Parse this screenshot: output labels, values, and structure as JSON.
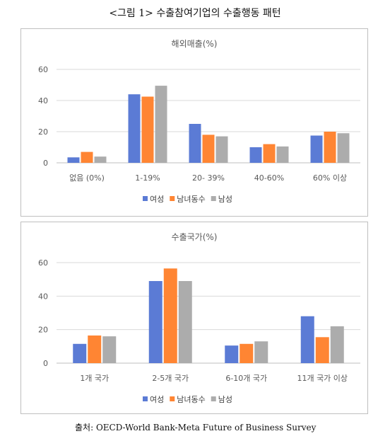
{
  "figure_title": "<그림 1> 수출참여기업의 수출행동 패턴",
  "source": "출처: OECD-World Bank-Meta Future of Business Survey",
  "colors": {
    "female": "#5b7bd5",
    "both": "#ff8533",
    "male": "#acacac",
    "grid": "#d9d9d9",
    "axis": "#bfbfbf"
  },
  "chart_data": [
    {
      "type": "bar",
      "title": "해외매출(%)",
      "categories": [
        "없음 (0%)",
        "1-19%",
        "20- 39%",
        "40-60%",
        "60% 이상"
      ],
      "series": [
        {
          "name": "여성",
          "values": [
            3.5,
            44,
            25,
            10,
            17.5
          ]
        },
        {
          "name": "남녀동수",
          "values": [
            7,
            42.5,
            18,
            12,
            20
          ]
        },
        {
          "name": "남성",
          "values": [
            4,
            49.5,
            17,
            10.5,
            19
          ]
        }
      ],
      "ylim": [
        0,
        60
      ],
      "yticks": [
        0,
        20,
        40,
        60
      ],
      "grid": true,
      "legend": "bottom"
    },
    {
      "type": "bar",
      "title": "수출국가(%)",
      "categories": [
        "1개 국가",
        "2-5개 국가",
        "6-10개 국가",
        "11개 국가 이상"
      ],
      "series": [
        {
          "name": "여성",
          "values": [
            11.5,
            49,
            10.5,
            28
          ]
        },
        {
          "name": "남녀동수",
          "values": [
            16.5,
            56.5,
            11.5,
            15.5
          ]
        },
        {
          "name": "남성",
          "values": [
            16,
            49,
            13,
            22
          ]
        }
      ],
      "ylim": [
        0,
        60
      ],
      "yticks": [
        0,
        20,
        40,
        60
      ],
      "grid": true,
      "legend": "bottom"
    }
  ]
}
